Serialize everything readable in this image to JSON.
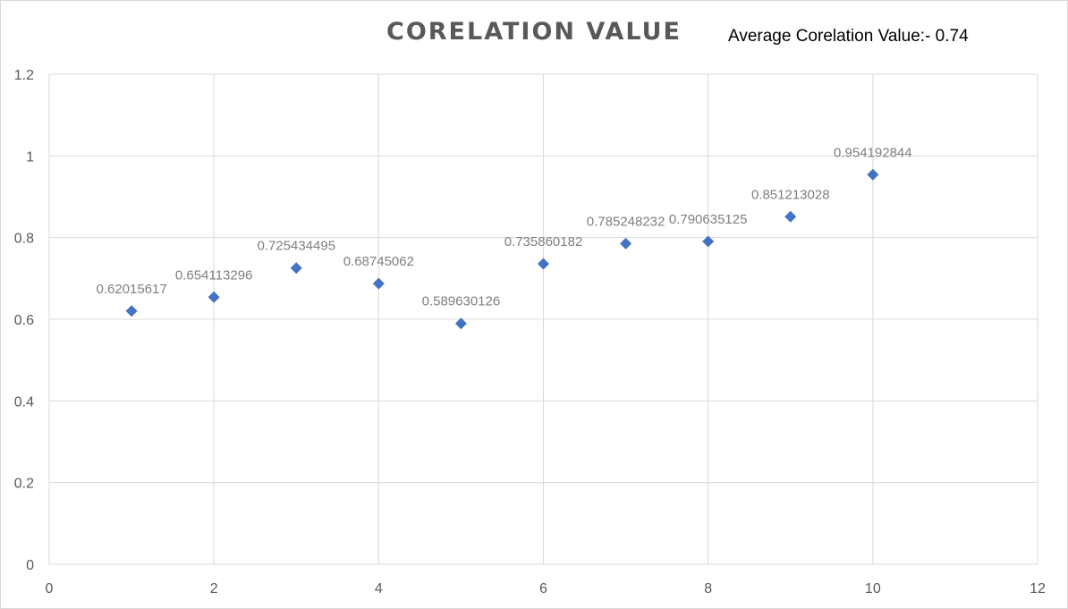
{
  "chart_data": {
    "type": "scatter",
    "title": "CORELATION  VALUE",
    "annotation": "Average Corelation Value:- 0.74",
    "xlim": [
      0,
      12
    ],
    "ylim": [
      0,
      1.2
    ],
    "x_ticks": [
      "0",
      "2",
      "4",
      "6",
      "8",
      "10",
      "12"
    ],
    "y_ticks": [
      "0",
      "0.2",
      "0.4",
      "0.6",
      "0.8",
      "1",
      "1.2"
    ],
    "grid": true,
    "marker": "diamond",
    "series_color": "#4472c4",
    "points": [
      {
        "x": 1,
        "y": 0.62015617,
        "label": "0.62015617"
      },
      {
        "x": 2,
        "y": 0.654113296,
        "label": "0.654113296"
      },
      {
        "x": 3,
        "y": 0.725434495,
        "label": "0.725434495"
      },
      {
        "x": 4,
        "y": 0.68745062,
        "label": "0.68745062"
      },
      {
        "x": 5,
        "y": 0.589630126,
        "label": "0.589630126"
      },
      {
        "x": 6,
        "y": 0.735860182,
        "label": "0.735860182"
      },
      {
        "x": 7,
        "y": 0.785248232,
        "label": "0.785248232"
      },
      {
        "x": 8,
        "y": 0.790635125,
        "label": "0.790635125"
      },
      {
        "x": 9,
        "y": 0.851213028,
        "label": "0.851213028"
      },
      {
        "x": 10,
        "y": 0.954192844,
        "label": "0.954192844"
      }
    ]
  }
}
